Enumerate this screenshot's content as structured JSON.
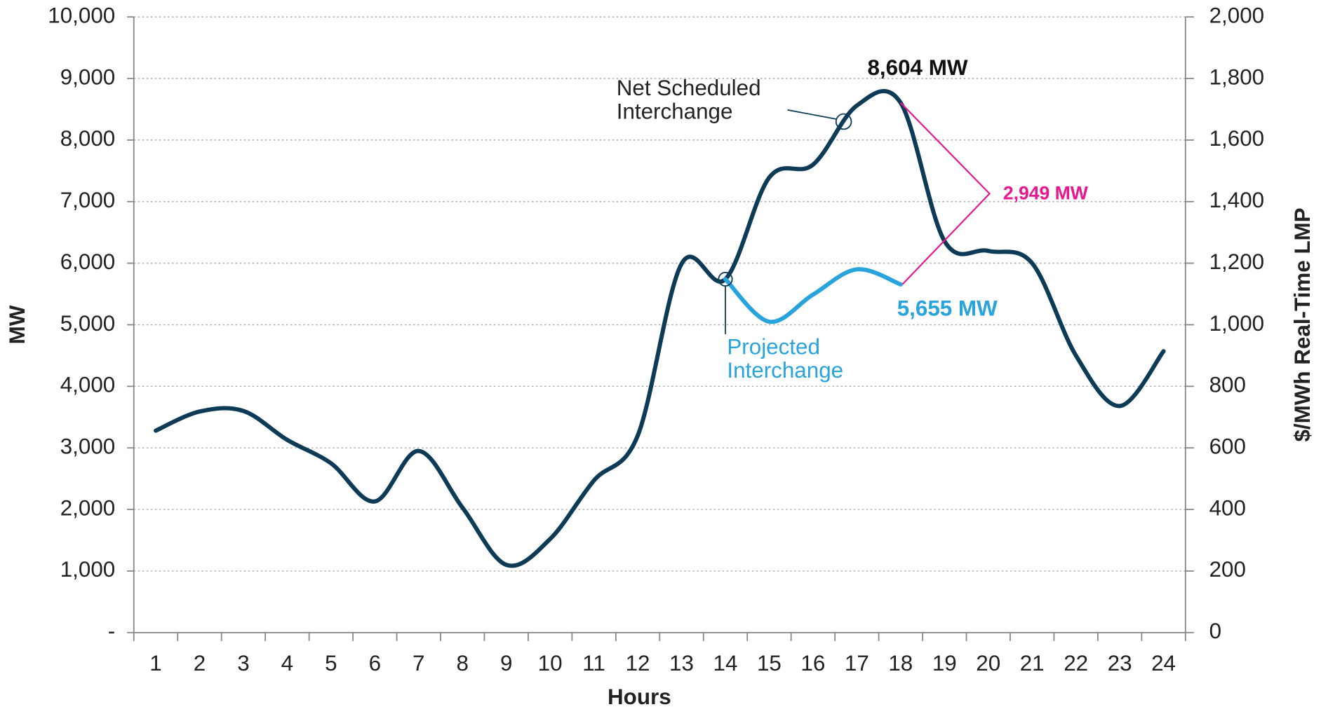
{
  "chart_data": {
    "type": "line",
    "x_label": "Hours",
    "y_label": "MW",
    "y2_label": "$/MWh Real-Time LMP",
    "categories": [
      "1",
      "2",
      "3",
      "4",
      "5",
      "6",
      "7",
      "8",
      "9",
      "10",
      "11",
      "12",
      "13",
      "14",
      "15",
      "16",
      "17",
      "18",
      "19",
      "20",
      "21",
      "22",
      "23",
      "24"
    ],
    "series": [
      {
        "name": "Net Scheduled Interchange",
        "color": "#0d3b57",
        "values": [
          3280,
          3590,
          3600,
          3130,
          2750,
          2130,
          2950,
          2030,
          1100,
          1520,
          2470,
          3200,
          5990,
          5740,
          7390,
          7600,
          8560,
          8604,
          6360,
          6200,
          6000,
          4500,
          3680,
          4570
        ],
        "value_labels": [
          null,
          null,
          null,
          null,
          null,
          null,
          null,
          null,
          null,
          null,
          null,
          null,
          null,
          null,
          null,
          null,
          null,
          "8,604 MW",
          null,
          null,
          null,
          null,
          null,
          null
        ]
      },
      {
        "name": "Projected Interchange",
        "color": "#29a3dc",
        "values": [
          null,
          null,
          null,
          null,
          null,
          null,
          null,
          null,
          null,
          null,
          null,
          null,
          null,
          5740,
          5050,
          5490,
          5900,
          5655,
          null,
          null,
          null,
          null,
          null,
          null
        ],
        "value_labels": [
          null,
          null,
          null,
          null,
          null,
          null,
          null,
          null,
          null,
          null,
          null,
          null,
          null,
          null,
          null,
          null,
          null,
          "5,655 MW",
          null,
          null,
          null,
          null,
          null,
          null
        ]
      }
    ],
    "difference": {
      "value": 2949,
      "label": "2,949 MW",
      "color": "#e6178f"
    },
    "ylim": [
      0,
      10000
    ],
    "yticks": [
      {
        "value": 0,
        "label": "-"
      },
      {
        "value": 1000,
        "label": "1,000"
      },
      {
        "value": 2000,
        "label": "2,000"
      },
      {
        "value": 3000,
        "label": "3,000"
      },
      {
        "value": 4000,
        "label": "4,000"
      },
      {
        "value": 5000,
        "label": "5,000"
      },
      {
        "value": 6000,
        "label": "6,000"
      },
      {
        "value": 7000,
        "label": "7,000"
      },
      {
        "value": 8000,
        "label": "8,000"
      },
      {
        "value": 9000,
        "label": "9,000"
      },
      {
        "value": 10000,
        "label": "10,000"
      }
    ],
    "y2lim": [
      0,
      2000
    ],
    "y2ticks": [
      0,
      200,
      400,
      600,
      800,
      {
        "value": 1000,
        "label": "1,000"
      },
      {
        "value": 1200,
        "label": "1,200"
      },
      {
        "value": 1400,
        "label": "1,400"
      },
      {
        "value": 1600,
        "label": "1,600"
      },
      {
        "value": 1800,
        "label": "1,800"
      },
      {
        "value": 2000,
        "label": "2,000"
      }
    ],
    "grid": true
  }
}
